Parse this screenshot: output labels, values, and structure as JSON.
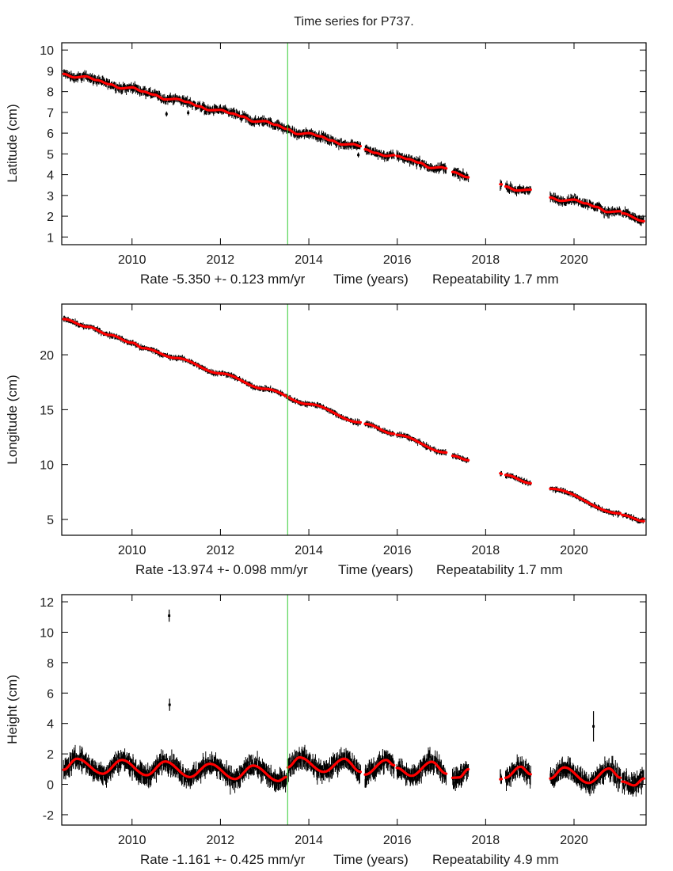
{
  "title": "Time series for P737.",
  "chart_data": [
    {
      "type": "scatter",
      "ylabel": "Latitude (cm)",
      "xlabel": "Time (years)",
      "rate_text": "Rate -5.350 +- 0.123 mm/yr",
      "repeatability_text": "Repeatability 1.7 mm",
      "xlim": [
        2008.41,
        2021.63
      ],
      "ylim": [
        0.63,
        10.35
      ],
      "xticks": [
        2010,
        2012,
        2014,
        2016,
        2018,
        2020
      ],
      "yticks": [
        1,
        2,
        3,
        4,
        5,
        6,
        7,
        8,
        9,
        10
      ],
      "reference_line_year": 2013.52,
      "scatter_spread_cm": 0.3,
      "error_bar_cm": 0.12,
      "model_segments": [
        [
          [
            2008.45,
            8.85
          ],
          [
            2008.7,
            8.68
          ],
          [
            2008.95,
            8.73
          ],
          [
            2009.2,
            8.55
          ],
          [
            2009.5,
            8.35
          ],
          [
            2009.75,
            8.15
          ],
          [
            2010.0,
            8.2
          ],
          [
            2010.25,
            8.0
          ],
          [
            2010.5,
            7.85
          ],
          [
            2010.75,
            7.62
          ],
          [
            2011.0,
            7.65
          ],
          [
            2011.25,
            7.5
          ],
          [
            2011.5,
            7.3
          ],
          [
            2011.75,
            7.1
          ],
          [
            2012.0,
            7.12
          ],
          [
            2012.25,
            6.95
          ],
          [
            2012.5,
            6.8
          ],
          [
            2012.75,
            6.55
          ],
          [
            2013.0,
            6.58
          ],
          [
            2013.25,
            6.4
          ],
          [
            2013.5,
            6.2
          ],
          [
            2013.75,
            5.95
          ],
          [
            2014.0,
            6.0
          ],
          [
            2014.25,
            5.85
          ],
          [
            2014.5,
            5.65
          ],
          [
            2014.75,
            5.45
          ],
          [
            2015.0,
            5.47
          ],
          [
            2015.17,
            5.37
          ]
        ],
        [
          [
            2015.27,
            5.22
          ],
          [
            2015.5,
            5.05
          ],
          [
            2015.75,
            4.9
          ],
          [
            2015.93,
            4.94
          ]
        ],
        [
          [
            2015.99,
            4.9
          ],
          [
            2016.25,
            4.75
          ],
          [
            2016.5,
            4.58
          ],
          [
            2016.75,
            4.32
          ],
          [
            2017.0,
            4.36
          ],
          [
            2017.11,
            4.3
          ]
        ],
        [
          [
            2017.25,
            4.13
          ],
          [
            2017.61,
            3.87
          ]
        ],
        [
          [
            2018.33,
            3.54
          ],
          [
            2018.36,
            3.53
          ]
        ],
        [
          [
            2018.45,
            3.43
          ],
          [
            2018.7,
            3.24
          ],
          [
            2019.02,
            3.28
          ]
        ],
        [
          [
            2019.46,
            2.9
          ],
          [
            2019.7,
            2.74
          ],
          [
            2020.0,
            2.8
          ],
          [
            2020.25,
            2.62
          ],
          [
            2020.5,
            2.45
          ],
          [
            2020.75,
            2.2
          ],
          [
            2021.05,
            2.24
          ]
        ],
        [
          [
            2021.09,
            2.14
          ],
          [
            2021.58,
            1.76
          ]
        ]
      ],
      "outliers": [
        [
          2010.78,
          6.92
        ],
        [
          2011.27,
          6.98
        ],
        [
          2015.12,
          4.95
        ]
      ]
    },
    {
      "type": "scatter",
      "ylabel": "Longitude (cm)",
      "xlabel": "Time (years)",
      "rate_text": "Rate -13.974 +- 0.098 mm/yr",
      "repeatability_text": "Repeatability 1.7 mm",
      "xlim": [
        2008.41,
        2021.63
      ],
      "ylim": [
        3.56,
        24.62
      ],
      "xticks": [
        2010,
        2012,
        2014,
        2016,
        2018,
        2020
      ],
      "yticks": [
        5,
        10,
        15,
        20
      ],
      "reference_line_year": 2013.52,
      "scatter_spread_cm": 0.3,
      "error_bar_cm": 0.15,
      "model_segments": [
        [
          [
            2008.45,
            23.25
          ],
          [
            2009.0,
            22.55
          ],
          [
            2009.5,
            21.8
          ],
          [
            2010.0,
            21.1
          ],
          [
            2010.25,
            20.6
          ],
          [
            2011.0,
            19.7
          ],
          [
            2012.0,
            18.3
          ],
          [
            2013.0,
            16.9
          ],
          [
            2014.0,
            15.5
          ],
          [
            2015.17,
            13.84
          ]
        ],
        [
          [
            2015.27,
            13.7
          ],
          [
            2015.93,
            12.8
          ]
        ],
        [
          [
            2015.99,
            12.7
          ],
          [
            2017.11,
            11.1
          ]
        ],
        [
          [
            2017.25,
            10.8
          ],
          [
            2017.61,
            10.4
          ]
        ],
        [
          [
            2018.33,
            9.2
          ],
          [
            2018.36,
            9.15
          ]
        ],
        [
          [
            2018.45,
            9.05
          ],
          [
            2019.02,
            8.3
          ]
        ],
        [
          [
            2019.46,
            7.8
          ],
          [
            2021.05,
            5.55
          ]
        ],
        [
          [
            2021.09,
            5.4
          ],
          [
            2021.58,
            4.85
          ]
        ]
      ],
      "outliers": []
    },
    {
      "type": "scatter",
      "ylabel": "Height (cm)",
      "xlabel": "Time (years)",
      "rate_text": "Rate -1.161 +- 0.425 mm/yr",
      "repeatability_text": "Repeatability 4.9 mm",
      "xlim": [
        2008.41,
        2021.63
      ],
      "ylim": [
        -2.68,
        12.47
      ],
      "xticks": [
        2010,
        2012,
        2014,
        2016,
        2018,
        2020
      ],
      "yticks": [
        -2,
        0,
        2,
        4,
        6,
        8,
        10,
        12
      ],
      "reference_line_year": 2013.52,
      "scatter_spread_cm": 0.9,
      "error_bar_cm": 0.35,
      "model_segments": [
        [
          [
            2008.45,
            0.96
          ],
          [
            2008.75,
            1.68
          ],
          [
            2009.34,
            0.7
          ],
          [
            2009.77,
            1.6
          ],
          [
            2010.33,
            0.6
          ],
          [
            2010.75,
            1.5
          ],
          [
            2011.31,
            0.48
          ],
          [
            2011.76,
            1.35
          ],
          [
            2012.33,
            0.35
          ],
          [
            2012.74,
            1.23
          ],
          [
            2013.31,
            0.22
          ],
          [
            2013.5,
            0.48
          ]
        ],
        [
          [
            2013.52,
            1.11
          ],
          [
            2013.79,
            1.77
          ],
          [
            2014.34,
            0.82
          ],
          [
            2014.8,
            1.68
          ],
          [
            2015.17,
            0.82
          ]
        ],
        [
          [
            2015.27,
            0.64
          ],
          [
            2015.75,
            1.6
          ],
          [
            2015.93,
            1.25
          ]
        ],
        [
          [
            2015.99,
            1.08
          ],
          [
            2016.32,
            0.56
          ],
          [
            2016.78,
            1.48
          ],
          [
            2017.11,
            0.7
          ]
        ],
        [
          [
            2017.25,
            0.43
          ],
          [
            2017.4,
            0.45
          ],
          [
            2017.61,
            0.99
          ]
        ],
        [
          [
            2018.33,
            0.33
          ],
          [
            2018.36,
            0.35
          ]
        ],
        [
          [
            2018.45,
            0.43
          ],
          [
            2018.79,
            1.16
          ],
          [
            2019.02,
            0.66
          ]
        ],
        [
          [
            2019.46,
            0.38
          ],
          [
            2019.78,
            1.11
          ],
          [
            2020.33,
            0.09
          ],
          [
            2020.79,
            1.04
          ],
          [
            2021.05,
            0.43
          ]
        ],
        [
          [
            2021.09,
            0.18
          ],
          [
            2021.36,
            -0.07
          ],
          [
            2021.58,
            0.38
          ]
        ]
      ],
      "outliers": [
        [
          2010.84,
          11.09,
          0.4
        ],
        [
          2010.85,
          5.23,
          0.4
        ],
        [
          2020.44,
          3.81,
          1.0
        ]
      ]
    }
  ],
  "colors": {
    "data": "#000000",
    "model": "#ff0000",
    "reference_line": "#33cc33",
    "axes": "#000000"
  }
}
